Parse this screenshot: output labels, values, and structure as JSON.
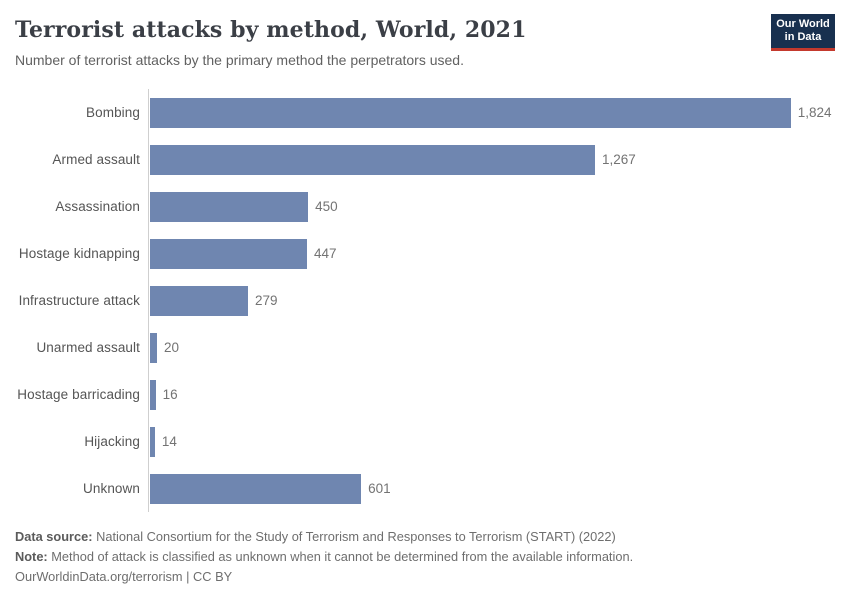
{
  "header": {
    "title": "Terrorist attacks by method, World, 2021",
    "subtitle": "Number of terrorist attacks by the primary method the perpetrators used.",
    "logo": {
      "line1": "Our World",
      "line2": "in Data"
    }
  },
  "chart_data": {
    "type": "bar",
    "orientation": "horizontal",
    "title": "Terrorist attacks by method, World, 2021",
    "xlabel": "",
    "ylabel": "",
    "categories": [
      "Bombing",
      "Armed assault",
      "Assassination",
      "Hostage kidnapping",
      "Infrastructure attack",
      "Unarmed assault",
      "Hostage barricading",
      "Hijacking",
      "Unknown"
    ],
    "values": [
      1824,
      1267,
      450,
      447,
      279,
      20,
      16,
      14,
      601
    ],
    "value_labels": [
      "1,824",
      "1,267",
      "450",
      "447",
      "279",
      "20",
      "16",
      "14",
      "601"
    ],
    "xlim": [
      0,
      1950
    ],
    "max_display_value": 1950,
    "grid": false,
    "legend": "none",
    "bar_color": "#6f86b0",
    "axis_line_color": "#cfcfcf"
  },
  "footer": {
    "data_source_label": "Data source:",
    "data_source_text": " National Consortium for the Study of Terrorism and Responses to Terrorism (START) (2022)",
    "note_label": "Note:",
    "note_text": " Method of attack is classified as unknown when it cannot be determined from the available information.",
    "license": "OurWorldinData.org/terrorism | CC BY"
  },
  "colors": {
    "bar": "#6f86b0",
    "logo_bg": "#18304f",
    "logo_stripe": "#c4392d",
    "title": "#3b3f46",
    "subtitle": "#616161",
    "category_label": "#555555",
    "value_label": "#737373"
  }
}
